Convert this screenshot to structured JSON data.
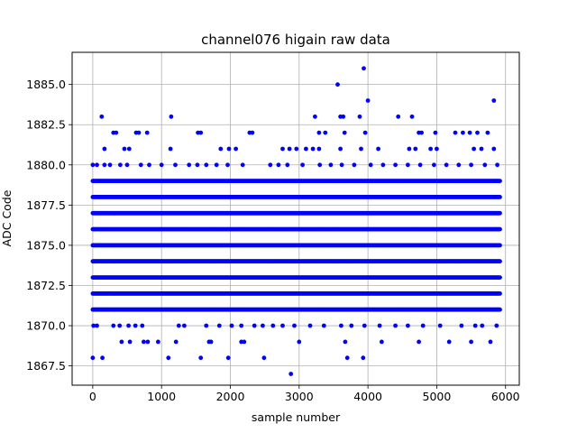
{
  "chart_data": {
    "type": "scatter",
    "title": "channel076 higain raw data",
    "xlabel": "sample number",
    "ylabel": "ADC Code",
    "xlim": [
      -300,
      6200
    ],
    "ylim": [
      1866.3,
      1887.0
    ],
    "xticks": [
      0,
      1000,
      2000,
      3000,
      4000,
      5000,
      6000
    ],
    "xtick_labels": [
      "0",
      "1000",
      "2000",
      "3000",
      "4000",
      "5000",
      "6000"
    ],
    "yticks": [
      1867.5,
      1870.0,
      1872.5,
      1875.0,
      1877.5,
      1880.0,
      1882.5,
      1885.0
    ],
    "ytick_labels": [
      "1867.5",
      "1870.0",
      "1872.5",
      "1875.0",
      "1877.5",
      "1880.0",
      "1882.5",
      "1885.0"
    ],
    "grid": true,
    "marker_color": "#0000ff",
    "dense_x_range": [
      0,
      5925
    ],
    "dense_levels": [
      1871,
      1872,
      1873,
      1874,
      1875,
      1876,
      1877,
      1878,
      1879
    ],
    "series": [
      {
        "points": [
          [
            0,
            1868
          ],
          [
            140,
            1868
          ],
          [
            1100,
            1868
          ],
          [
            1570,
            1868
          ],
          [
            1970,
            1868
          ],
          [
            2490,
            1868
          ],
          [
            3700,
            1868
          ],
          [
            3930,
            1868
          ],
          [
            2880,
            1867
          ],
          [
            130,
            1883
          ],
          [
            1140,
            1883
          ],
          [
            3230,
            1883
          ],
          [
            3600,
            1883
          ],
          [
            3640,
            1883
          ],
          [
            3880,
            1883
          ],
          [
            4440,
            1883
          ],
          [
            4640,
            1883
          ],
          [
            3560,
            1885
          ],
          [
            3940,
            1886
          ],
          [
            4000,
            1884
          ],
          [
            5830,
            1884
          ],
          [
            300,
            1882
          ],
          [
            340,
            1882
          ],
          [
            630,
            1882
          ],
          [
            670,
            1882
          ],
          [
            790,
            1882
          ],
          [
            1530,
            1882
          ],
          [
            1570,
            1882
          ],
          [
            2280,
            1882
          ],
          [
            2320,
            1882
          ],
          [
            3290,
            1882
          ],
          [
            3380,
            1882
          ],
          [
            3660,
            1882
          ],
          [
            3960,
            1882
          ],
          [
            4740,
            1882
          ],
          [
            4780,
            1882
          ],
          [
            4980,
            1882
          ],
          [
            5270,
            1882
          ],
          [
            5380,
            1882
          ],
          [
            5480,
            1882
          ],
          [
            5590,
            1882
          ],
          [
            5740,
            1882
          ],
          [
            170,
            1881
          ],
          [
            460,
            1881
          ],
          [
            530,
            1881
          ],
          [
            1130,
            1881
          ],
          [
            1860,
            1881
          ],
          [
            1980,
            1881
          ],
          [
            2080,
            1881
          ],
          [
            2760,
            1881
          ],
          [
            2860,
            1881
          ],
          [
            2960,
            1881
          ],
          [
            3100,
            1881
          ],
          [
            3200,
            1881
          ],
          [
            3290,
            1881
          ],
          [
            3600,
            1881
          ],
          [
            3900,
            1881
          ],
          [
            4150,
            1881
          ],
          [
            4600,
            1881
          ],
          [
            4690,
            1881
          ],
          [
            4910,
            1881
          ],
          [
            5000,
            1881
          ],
          [
            5540,
            1881
          ],
          [
            5650,
            1881
          ],
          [
            5830,
            1881
          ],
          [
            0,
            1880
          ],
          [
            60,
            1880
          ],
          [
            170,
            1880
          ],
          [
            250,
            1880
          ],
          [
            400,
            1880
          ],
          [
            500,
            1880
          ],
          [
            700,
            1880
          ],
          [
            820,
            1880
          ],
          [
            1000,
            1880
          ],
          [
            1200,
            1880
          ],
          [
            1400,
            1880
          ],
          [
            1520,
            1880
          ],
          [
            1650,
            1880
          ],
          [
            1800,
            1880
          ],
          [
            1960,
            1880
          ],
          [
            2180,
            1880
          ],
          [
            2580,
            1880
          ],
          [
            2700,
            1880
          ],
          [
            2830,
            1880
          ],
          [
            3050,
            1880
          ],
          [
            3300,
            1880
          ],
          [
            3460,
            1880
          ],
          [
            3620,
            1880
          ],
          [
            3800,
            1880
          ],
          [
            4040,
            1880
          ],
          [
            4220,
            1880
          ],
          [
            4400,
            1880
          ],
          [
            4580,
            1880
          ],
          [
            4760,
            1880
          ],
          [
            4960,
            1880
          ],
          [
            5140,
            1880
          ],
          [
            5320,
            1880
          ],
          [
            5500,
            1880
          ],
          [
            5700,
            1880
          ],
          [
            5880,
            1880
          ],
          [
            10,
            1870
          ],
          [
            60,
            1870
          ],
          [
            300,
            1870
          ],
          [
            390,
            1870
          ],
          [
            520,
            1870
          ],
          [
            620,
            1870
          ],
          [
            720,
            1870
          ],
          [
            1250,
            1870
          ],
          [
            1330,
            1870
          ],
          [
            1650,
            1870
          ],
          [
            1840,
            1870
          ],
          [
            2020,
            1870
          ],
          [
            2160,
            1870
          ],
          [
            2350,
            1870
          ],
          [
            2470,
            1870
          ],
          [
            2620,
            1870
          ],
          [
            2760,
            1870
          ],
          [
            2930,
            1870
          ],
          [
            3160,
            1870
          ],
          [
            3360,
            1870
          ],
          [
            3610,
            1870
          ],
          [
            3760,
            1870
          ],
          [
            3950,
            1870
          ],
          [
            4170,
            1870
          ],
          [
            4400,
            1870
          ],
          [
            4580,
            1870
          ],
          [
            4800,
            1870
          ],
          [
            5050,
            1870
          ],
          [
            5360,
            1870
          ],
          [
            5560,
            1870
          ],
          [
            5660,
            1870
          ],
          [
            5870,
            1870
          ],
          [
            420,
            1869
          ],
          [
            540,
            1869
          ],
          [
            740,
            1869
          ],
          [
            800,
            1869
          ],
          [
            950,
            1869
          ],
          [
            1210,
            1869
          ],
          [
            1690,
            1869
          ],
          [
            1720,
            1869
          ],
          [
            2160,
            1869
          ],
          [
            2200,
            1869
          ],
          [
            3000,
            1869
          ],
          [
            3670,
            1869
          ],
          [
            4200,
            1869
          ],
          [
            4740,
            1869
          ],
          [
            5180,
            1869
          ],
          [
            5500,
            1869
          ],
          [
            5780,
            1869
          ]
        ]
      }
    ]
  }
}
